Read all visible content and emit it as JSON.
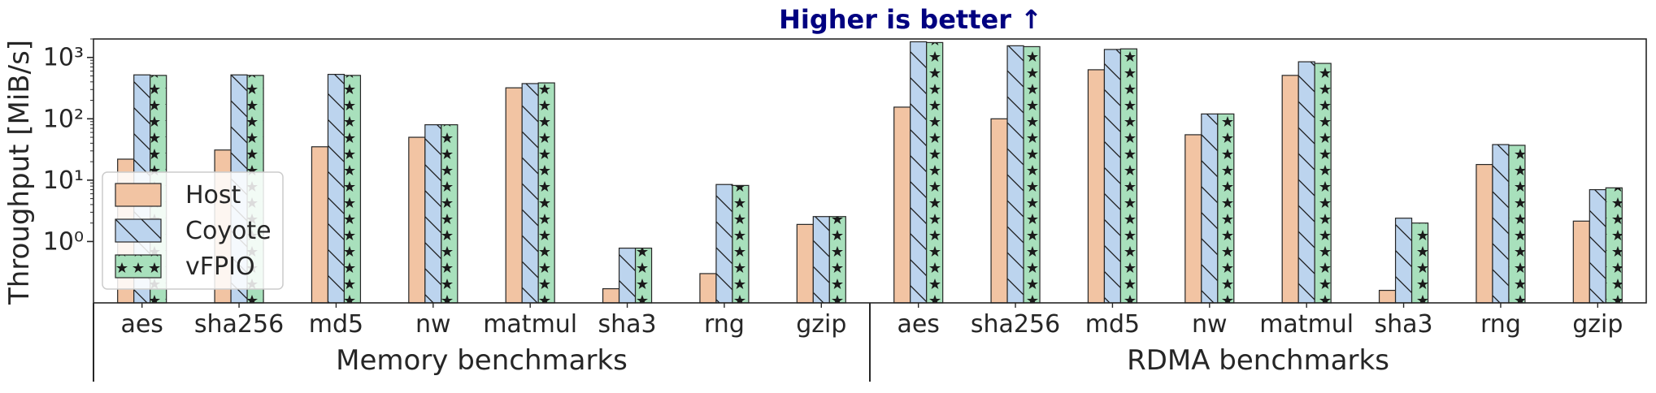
{
  "chart_data": {
    "type": "bar",
    "title": "Higher is better ↑",
    "ylabel": "Throughput [MiB/s]",
    "yscale": "log",
    "ylim": [
      0.1,
      2000
    ],
    "yticks": [
      {
        "value": 1,
        "label": "10⁰"
      },
      {
        "value": 10,
        "label": "10¹"
      },
      {
        "value": 100,
        "label": "10²"
      },
      {
        "value": 1000,
        "label": "10³"
      }
    ],
    "grid": false,
    "legend_position": "lower-left",
    "categories": [
      "aes",
      "sha256",
      "md5",
      "nw",
      "matmul",
      "sha3",
      "rng",
      "gzip",
      "aes",
      "sha256",
      "md5",
      "nw",
      "matmul",
      "sha3",
      "rng",
      "gzip"
    ],
    "groups": [
      {
        "label": "Memory benchmarks",
        "count": 8
      },
      {
        "label": "RDMA benchmarks",
        "count": 8
      }
    ],
    "series": [
      {
        "name": "Host",
        "color": "#f2c4a3",
        "pattern": "none",
        "values": [
          22,
          31,
          35,
          50,
          320,
          0.17,
          0.3,
          1.9,
          155,
          100,
          630,
          55,
          510,
          0.16,
          18,
          2.15
        ]
      },
      {
        "name": "Coyote",
        "color": "#bcd4ee",
        "pattern": "diagonal",
        "values": [
          520,
          520,
          530,
          80,
          375,
          0.78,
          8.5,
          2.55,
          1800,
          1550,
          1350,
          120,
          850,
          2.4,
          38,
          7.0
        ]
      },
      {
        "name": "vFPIO",
        "color": "#a8e0bc",
        "pattern": "stars",
        "values": [
          510,
          510,
          510,
          80,
          385,
          0.78,
          8.2,
          2.55,
          1750,
          1500,
          1380,
          120,
          800,
          2.0,
          37,
          7.5
        ]
      }
    ]
  }
}
